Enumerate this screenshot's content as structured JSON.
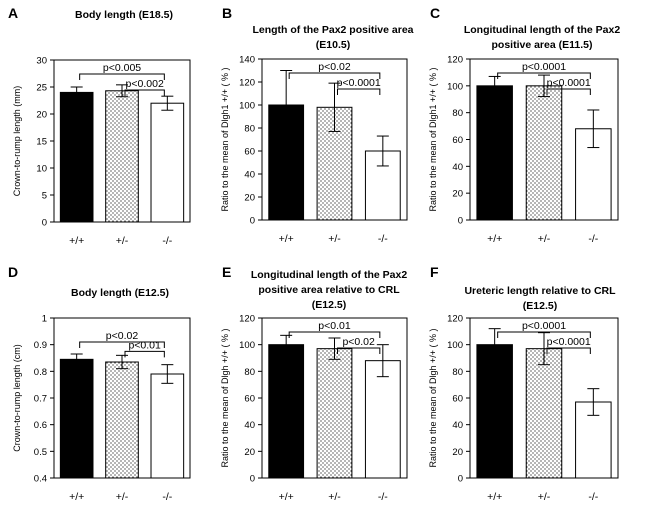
{
  "chart_data": [
    {
      "panel": "A",
      "type": "bar",
      "title": [
        "Body length (E18.5)"
      ],
      "ylabel": "Crown-to-rump length (mm)",
      "categories": [
        "+/+",
        "+/-",
        "-/-"
      ],
      "values": [
        24.0,
        24.3,
        22.0
      ],
      "errors": [
        1.0,
        1.1,
        1.3
      ],
      "ylim": [
        0,
        30
      ],
      "yticks": [
        "0",
        "5",
        "10",
        "15",
        "20",
        "25",
        "30"
      ],
      "bar_styles": [
        "solid",
        "dotted",
        "open"
      ],
      "comparisons": [
        {
          "from": 0,
          "to": 2,
          "label": "p<0.005"
        },
        {
          "from": 1,
          "to": 2,
          "label": "p<0.002"
        }
      ]
    },
    {
      "panel": "B",
      "type": "bar",
      "title": [
        "Length of the Pax2 positive area",
        "(E10.5)"
      ],
      "ylabel": "Ratio to the mean of Dlgh1 +/+ ( % )",
      "categories": [
        "+/+",
        "+/-",
        "-/-"
      ],
      "values": [
        100,
        98,
        60
      ],
      "errors": [
        30,
        21,
        13
      ],
      "ylim": [
        0,
        140
      ],
      "yticks": [
        "0",
        "20",
        "40",
        "60",
        "80",
        "100",
        "120",
        "140"
      ],
      "bar_styles": [
        "solid",
        "dotted",
        "open"
      ],
      "comparisons": [
        {
          "from": 0,
          "to": 2,
          "label": "p<0.02"
        },
        {
          "from": 1,
          "to": 2,
          "label": "p<0.0001"
        }
      ]
    },
    {
      "panel": "C",
      "type": "bar",
      "title": [
        "Longitudinal length of the Pax2",
        "positive area (E11.5)"
      ],
      "ylabel": "Ratio to the mean of Dlgh1 +/+ ( % )",
      "categories": [
        "+/+",
        "+/-",
        "-/-"
      ],
      "values": [
        100,
        100,
        68
      ],
      "errors": [
        7,
        8,
        14
      ],
      "ylim": [
        0,
        120
      ],
      "yticks": [
        "0",
        "20",
        "40",
        "60",
        "80",
        "100",
        "120"
      ],
      "bar_styles": [
        "solid",
        "dotted",
        "open"
      ],
      "comparisons": [
        {
          "from": 0,
          "to": 2,
          "label": "p<0.0001"
        },
        {
          "from": 1,
          "to": 2,
          "label": "p<0.0001"
        }
      ]
    },
    {
      "panel": "D",
      "type": "bar",
      "title": [
        "Body length (E12.5)"
      ],
      "ylabel": "Crown-to-rump length (cm)",
      "categories": [
        "+/+",
        "+/-",
        "-/-"
      ],
      "values": [
        0.845,
        0.835,
        0.79
      ],
      "errors": [
        0.02,
        0.025,
        0.035
      ],
      "ylim": [
        0.4,
        1.0
      ],
      "yticks": [
        "0.4",
        "0.5",
        "0.6",
        "0.7",
        "0.8",
        "0.9",
        "1"
      ],
      "bar_styles": [
        "solid",
        "dotted",
        "open"
      ],
      "comparisons": [
        {
          "from": 0,
          "to": 2,
          "label": "p<0.02"
        },
        {
          "from": 1,
          "to": 2,
          "label": "p<0.01"
        }
      ]
    },
    {
      "panel": "E",
      "type": "bar",
      "title": [
        "Longitudinal length of the Pax2",
        "positive area relative to CRL",
        "(E12.5)"
      ],
      "ylabel": "Ratio to the mean of Dlgh +/+ ( % )",
      "categories": [
        "+/+",
        "+/-",
        "-/-"
      ],
      "values": [
        100,
        97,
        88
      ],
      "errors": [
        7,
        8,
        12
      ],
      "ylim": [
        0,
        120
      ],
      "yticks": [
        "0",
        "20",
        "40",
        "60",
        "80",
        "100",
        "120"
      ],
      "bar_styles": [
        "solid",
        "dotted",
        "open"
      ],
      "comparisons": [
        {
          "from": 0,
          "to": 2,
          "label": "p<0.01"
        },
        {
          "from": 1,
          "to": 2,
          "label": "p<0.02"
        }
      ]
    },
    {
      "panel": "F",
      "type": "bar",
      "title": [
        "Ureteric length relative to CRL",
        "(E12.5)"
      ],
      "ylabel": "Ratio to the mean of Dlgh +/+ ( % )",
      "categories": [
        "+/+",
        "+/-",
        "-/-"
      ],
      "values": [
        100,
        97,
        57
      ],
      "errors": [
        12,
        12,
        10
      ],
      "ylim": [
        0,
        120
      ],
      "yticks": [
        "0",
        "20",
        "40",
        "60",
        "80",
        "100",
        "120"
      ],
      "bar_styles": [
        "solid",
        "dotted",
        "open"
      ],
      "comparisons": [
        {
          "from": 0,
          "to": 2,
          "label": "p<0.0001"
        },
        {
          "from": 1,
          "to": 2,
          "label": "p<0.0001"
        }
      ]
    }
  ]
}
